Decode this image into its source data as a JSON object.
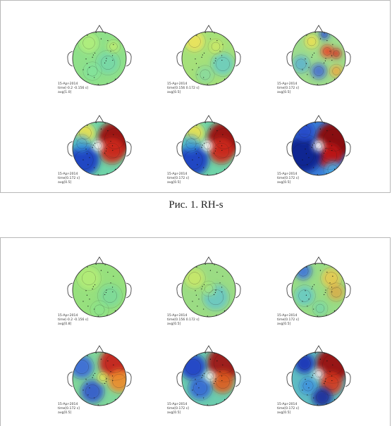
{
  "figure1": {
    "caption": "Рис. 1. RH-s",
    "maps": [
      {
        "date": "15-Apr-2014",
        "time": "time[-0.2 -0.156 s]",
        "avg": "avg[1.0]",
        "palette": "calm"
      },
      {
        "date": "15-Apr-2014",
        "time": "time[0.156 0.172 s]",
        "avg": "avg[0.5]",
        "palette": "mild"
      },
      {
        "date": "15-Apr-2014",
        "time": "time[0.172 s]",
        "avg": "avg[0.5]",
        "palette": "spotty"
      },
      {
        "date": "15-Apr-2014",
        "time": "time[0.172 s]",
        "avg": "avg[0.5]",
        "palette": "strong"
      },
      {
        "date": "15-Apr-2014",
        "time": "time[0.172 s]",
        "avg": "avg[0.5]",
        "palette": "strong"
      },
      {
        "date": "15-Apr-2014",
        "time": "time[0.172 s]",
        "avg": "avg[0.5]",
        "palette": "strongest"
      }
    ]
  },
  "figure2": {
    "maps": [
      {
        "date": "15-Apr-2014",
        "time": "time[-0.2 -0.156 s]",
        "avg": "avg[0.8]",
        "palette": "calm2"
      },
      {
        "date": "15-Apr-2014",
        "time": "time[0.156 0.172 s]",
        "avg": "avg[0.5]",
        "palette": "mild2"
      },
      {
        "date": "15-Apr-2014",
        "time": "time[0.172 s]",
        "avg": "avg[0.5]",
        "palette": "mild3"
      },
      {
        "date": "15-Apr-2014",
        "time": "time[0.172 s]",
        "avg": "avg[0.5]",
        "palette": "strong2"
      },
      {
        "date": "15-Apr-2014",
        "time": "time[0.172 s]",
        "avg": "avg[0.5]",
        "palette": "strong3"
      },
      {
        "date": "15-Apr-2014",
        "time": "time[0.172 s]",
        "avg": "avg[0.5]",
        "palette": "strong4"
      }
    ]
  }
}
